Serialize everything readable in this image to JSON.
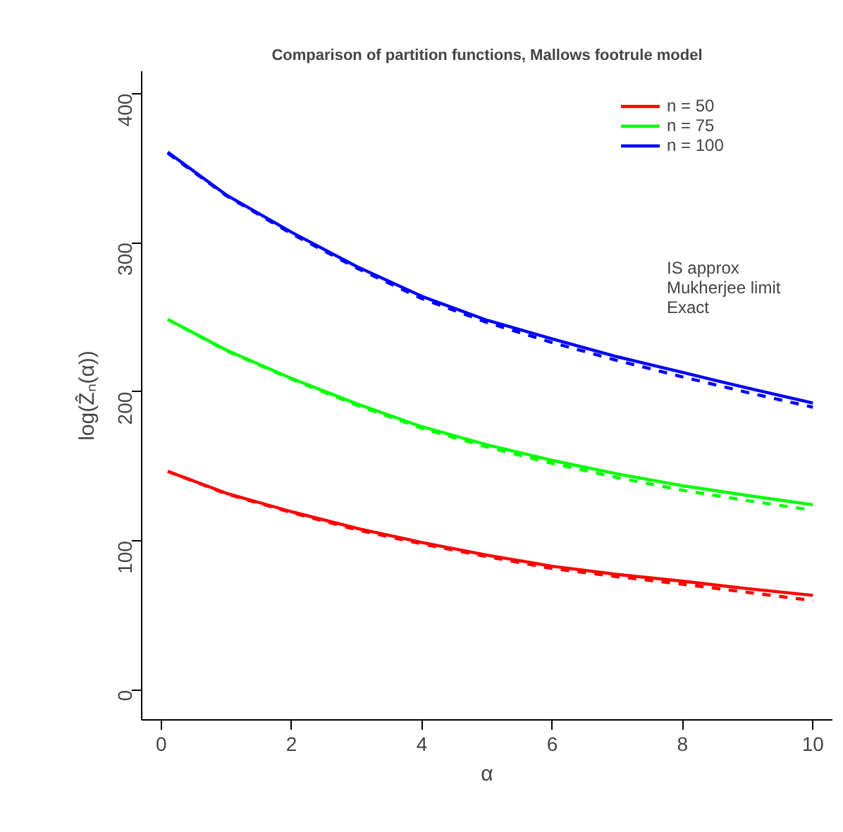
{
  "chart_data": {
    "type": "line",
    "title": "Comparison of partition functions, Mallows footrule model",
    "xlabel": "α",
    "ylabel": "log(Ẑₙ(α))",
    "x": [
      0.1,
      1,
      2,
      3,
      4,
      5,
      6,
      7,
      8,
      9,
      10
    ],
    "xlim": [
      -0.3,
      10.3
    ],
    "xticks": [
      0,
      2,
      4,
      6,
      8,
      10
    ],
    "ylim": [
      -20,
      415
    ],
    "yticks": [
      0,
      100,
      200,
      300,
      400
    ],
    "grid": false,
    "legend": "top right",
    "series": [
      {
        "name": "n = 50",
        "color": "#ff0000",
        "line_style": "solid",
        "values": [
          146.7,
          132,
          119.6,
          108.5,
          99,
          90.5,
          83,
          77.5,
          73,
          68,
          63.5
        ]
      },
      {
        "name": "n = 75",
        "color": "#00ff00",
        "line_style": "solid",
        "values": [
          248.6,
          228,
          209,
          192,
          176.6,
          164.5,
          154,
          145,
          137,
          130.5,
          124.3
        ]
      },
      {
        "name": "n = 100",
        "color": "#0000ff",
        "line_style": "solid",
        "values": [
          360.7,
          332,
          307,
          284,
          264,
          248,
          235.5,
          223.5,
          213,
          202.5,
          192.5
        ]
      },
      {
        "color": "#ff0000",
        "line_style": "dashed",
        "values": [
          146.7,
          131.5,
          119,
          107.5,
          98,
          89.5,
          81.5,
          76,
          71,
          65.5,
          60
        ]
      },
      {
        "color": "#00ff00",
        "line_style": "dashed",
        "values": [
          248.6,
          227.5,
          208.5,
          191,
          175.5,
          163,
          152,
          142.5,
          134,
          127,
          120.6
        ]
      },
      {
        "color": "#0000ff",
        "line_style": "dashed",
        "values": [
          360,
          331.5,
          306,
          283,
          262.5,
          246.5,
          233,
          221,
          210,
          199.5,
          189.7
        ]
      }
    ],
    "annotations": [
      "IS approx",
      "Mukherjee limit",
      "Exact"
    ]
  }
}
